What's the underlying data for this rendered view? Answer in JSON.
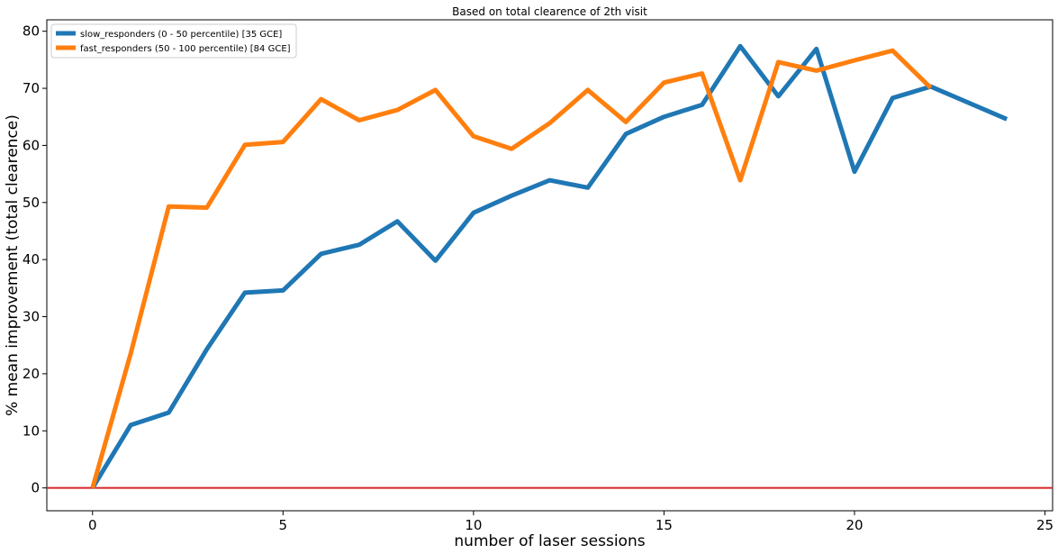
{
  "chart_data": {
    "type": "line",
    "title": "Based on total clearence of 2th visit",
    "xlabel": "number of laser sessions",
    "ylabel": "% mean improvement (total clearence)",
    "xlim": [
      -1.2,
      25.2
    ],
    "ylim": [
      -4,
      82
    ],
    "xticks": [
      0,
      5,
      10,
      15,
      20,
      25
    ],
    "yticks": [
      0,
      10,
      20,
      30,
      40,
      50,
      60,
      70,
      80
    ],
    "grid": false,
    "legend_position": "upper-left",
    "reference_line": {
      "y": 0,
      "color": "#d62728"
    },
    "series": [
      {
        "name": "slow_responders (0 - 50 percentile)  [35 GCE]",
        "color": "#1f77b4",
        "x": [
          0,
          1,
          2,
          3,
          4,
          5,
          6,
          7,
          8,
          9,
          10,
          11,
          12,
          13,
          14,
          15,
          16,
          17,
          18,
          19,
          20,
          21,
          22,
          24
        ],
        "y": [
          0,
          11,
          13.2,
          24.3,
          34.2,
          34.6,
          41,
          42.6,
          46.7,
          39.8,
          48.2,
          51.2,
          53.9,
          52.6,
          62,
          65,
          67.1,
          77.4,
          68.6,
          76.9,
          55.4,
          68.3,
          70.3,
          64.6
        ]
      },
      {
        "name": "fast_responders (50 - 100 percentile)  [84 GCE]",
        "color": "#ff7f0e",
        "x": [
          0,
          1,
          2,
          3,
          4,
          5,
          6,
          7,
          8,
          9,
          10,
          11,
          12,
          13,
          14,
          15,
          16,
          17,
          18,
          19,
          20,
          21,
          22
        ],
        "y": [
          0,
          23.5,
          49.3,
          49.1,
          60.1,
          60.6,
          68.1,
          64.4,
          66.2,
          69.7,
          61.6,
          59.4,
          63.9,
          69.7,
          64.1,
          71,
          72.6,
          53.9,
          74.6,
          73.1,
          74.9,
          76.6,
          70.1
        ]
      }
    ]
  }
}
